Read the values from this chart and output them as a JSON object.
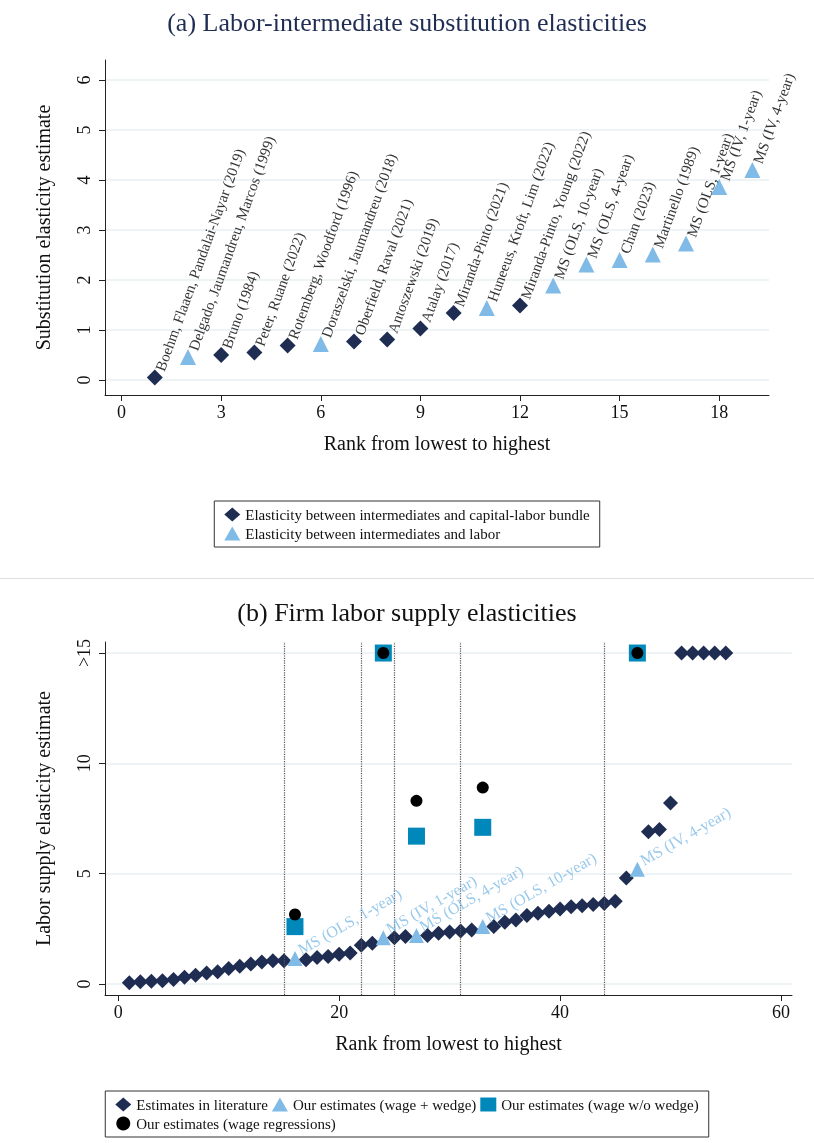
{
  "chart_data": [
    {
      "type": "scatter",
      "title": "(a) Labor-intermediate substitution elasticities",
      "xlabel": "Rank from lowest to highest",
      "ylabel": "Substitution elasticity estimate",
      "xlim": [
        -0.5,
        19.5
      ],
      "xticks": [
        0,
        3,
        6,
        9,
        12,
        15,
        18
      ],
      "ylim": [
        -0.3,
        6.4
      ],
      "yticks": [
        0,
        1,
        2,
        3,
        4,
        5,
        6
      ],
      "grid": "y",
      "legend": "bottom",
      "series": [
        {
          "name": "Elasticity between intermediates and capital-labor bundle",
          "color": "#1f2d53",
          "marker": "diamond",
          "x": [
            1,
            3,
            4,
            5,
            7,
            8,
            9,
            10,
            12
          ],
          "values": [
            0.05,
            0.5,
            0.55,
            0.69,
            0.77,
            0.81,
            1.03,
            1.34,
            1.49
          ]
        },
        {
          "name": "Elasticity between intermediates and labor",
          "color": "#7fbbe6",
          "marker": "triangle",
          "x": [
            2,
            6,
            11,
            13,
            14,
            15,
            16,
            17,
            18,
            19
          ],
          "values": [
            0.46,
            0.72,
            1.44,
            1.89,
            2.31,
            2.4,
            2.51,
            2.73,
            3.86,
            4.2
          ]
        }
      ],
      "annotations": [
        {
          "text": "Boehm, Flaaen, Pandalai-Nayar (2019)",
          "x": 1,
          "y": 0.05
        },
        {
          "text": "Delgado, Jaumandreu, Marcos (1999)",
          "x": 2,
          "y": 0.46
        },
        {
          "text": "Bruno (1984)",
          "x": 3,
          "y": 0.5
        },
        {
          "text": "Peter, Ruane (2022)",
          "x": 4,
          "y": 0.55
        },
        {
          "text": "Rotemberg, Woodford (1996)",
          "x": 5,
          "y": 0.69
        },
        {
          "text": "Doraszelski, Jaumandreu (2018)",
          "x": 6,
          "y": 0.72
        },
        {
          "text": "Oberfield, Raval (2021)",
          "x": 7,
          "y": 0.77
        },
        {
          "text": "Antoszewski (2019)",
          "x": 8,
          "y": 0.81
        },
        {
          "text": "Atalay (2017)",
          "x": 9,
          "y": 1.03
        },
        {
          "text": "Miranda-Pinto (2021)",
          "x": 10,
          "y": 1.34
        },
        {
          "text": "Huneeus, Kroft, Lim (2022)",
          "x": 11,
          "y": 1.44
        },
        {
          "text": "Miranda-Pinto, Young (2022)",
          "x": 12,
          "y": 1.49
        },
        {
          "text": "MS (OLS, 10-year)",
          "x": 13,
          "y": 1.89
        },
        {
          "text": "MS (OLS, 4-year)",
          "x": 14,
          "y": 2.31
        },
        {
          "text": "Chan (2023)",
          "x": 15,
          "y": 2.4
        },
        {
          "text": "Martinello (1989)",
          "x": 16,
          "y": 2.51
        },
        {
          "text": "MS (OLS, 1-year)",
          "x": 17,
          "y": 2.73
        },
        {
          "text": "MS (IV, 1-year)",
          "x": 18,
          "y": 3.86
        },
        {
          "text": "MS (IV, 4-year)",
          "x": 19,
          "y": 4.2
        }
      ]
    },
    {
      "type": "scatter",
      "title": "(b) Firm labor supply elasticities",
      "xlabel": "Rank from lowest to highest",
      "ylabel": "Labor supply elasticity estimate",
      "xlim": [
        -1.2,
        61
      ],
      "xticks": [
        0,
        20,
        40,
        60
      ],
      "ylim": [
        -0.5,
        15.5
      ],
      "yticks": [
        0,
        5,
        10,
        {
          "value": 15,
          "label": ">15"
        }
      ],
      "grid": "y",
      "legend": "bottom",
      "ref_lines": [
        {
          "axis": "x",
          "value": 15,
          "line_style": "dotted",
          "color": "#555555"
        },
        {
          "axis": "x",
          "value": 22,
          "line_style": "dotted",
          "color": "#555555"
        },
        {
          "axis": "x",
          "value": 25,
          "line_style": "dotted",
          "color": "#555555"
        },
        {
          "axis": "x",
          "value": 31,
          "line_style": "dotted",
          "color": "#555555"
        },
        {
          "axis": "x",
          "value": 44,
          "line_style": "dotted",
          "color": "#555555"
        }
      ],
      "series": [
        {
          "name": "Estimates in literature",
          "color": "#1f2d53",
          "marker": "diamond",
          "x": [
            1,
            2,
            3,
            4,
            5,
            6,
            7,
            8,
            9,
            10,
            11,
            12,
            13,
            14,
            15,
            17,
            18,
            19,
            20,
            21,
            22,
            23,
            25,
            26,
            28,
            29,
            30,
            31,
            32,
            34,
            35,
            36,
            37,
            38,
            39,
            40,
            41,
            42,
            43,
            44,
            45,
            46,
            48,
            49,
            50,
            51,
            52,
            53,
            54,
            55
          ],
          "values": [
            0.05,
            0.1,
            0.12,
            0.15,
            0.2,
            0.3,
            0.4,
            0.5,
            0.55,
            0.7,
            0.8,
            0.9,
            1.0,
            1.05,
            1.05,
            1.1,
            1.2,
            1.25,
            1.35,
            1.4,
            1.75,
            1.85,
            2.1,
            2.15,
            2.2,
            2.3,
            2.35,
            2.4,
            2.45,
            2.6,
            2.8,
            2.9,
            3.1,
            3.2,
            3.3,
            3.4,
            3.5,
            3.55,
            3.6,
            3.65,
            3.75,
            4.8,
            6.9,
            7.0,
            8.2,
            15,
            15,
            15,
            15,
            15
          ]
        },
        {
          "name": "Our estimates (wage + wedge)",
          "color": "#7fbbe6",
          "marker": "triangle",
          "x": [
            16,
            24,
            27,
            33,
            47
          ],
          "values": [
            1.15,
            2.1,
            2.2,
            2.6,
            5.2
          ]
        },
        {
          "name": "Our estimates (wage w/o wedge)",
          "color": "#0088bb",
          "marker": "square",
          "x": [
            16,
            24,
            27,
            33,
            47
          ],
          "values": [
            2.6,
            15,
            6.7,
            7.1,
            15
          ]
        },
        {
          "name": "Our estimates (wage regressions)",
          "color": "#000000",
          "marker": "circle",
          "x": [
            16,
            24,
            27,
            33,
            47
          ],
          "values": [
            3.15,
            15,
            8.3,
            8.9,
            15
          ]
        }
      ],
      "annotations": [
        {
          "text": "MS (OLS, 1-year)",
          "x": 16,
          "y": 1.15
        },
        {
          "text": "MS (IV, 1-year)",
          "x": 24,
          "y": 2.1
        },
        {
          "text": "MS (OLS, 4-year)",
          "x": 27,
          "y": 2.2
        },
        {
          "text": "MS (OLS, 10-year)",
          "x": 33,
          "y": 2.6
        },
        {
          "text": "MS (IV, 4-year)",
          "x": 47,
          "y": 5.2
        }
      ]
    }
  ]
}
